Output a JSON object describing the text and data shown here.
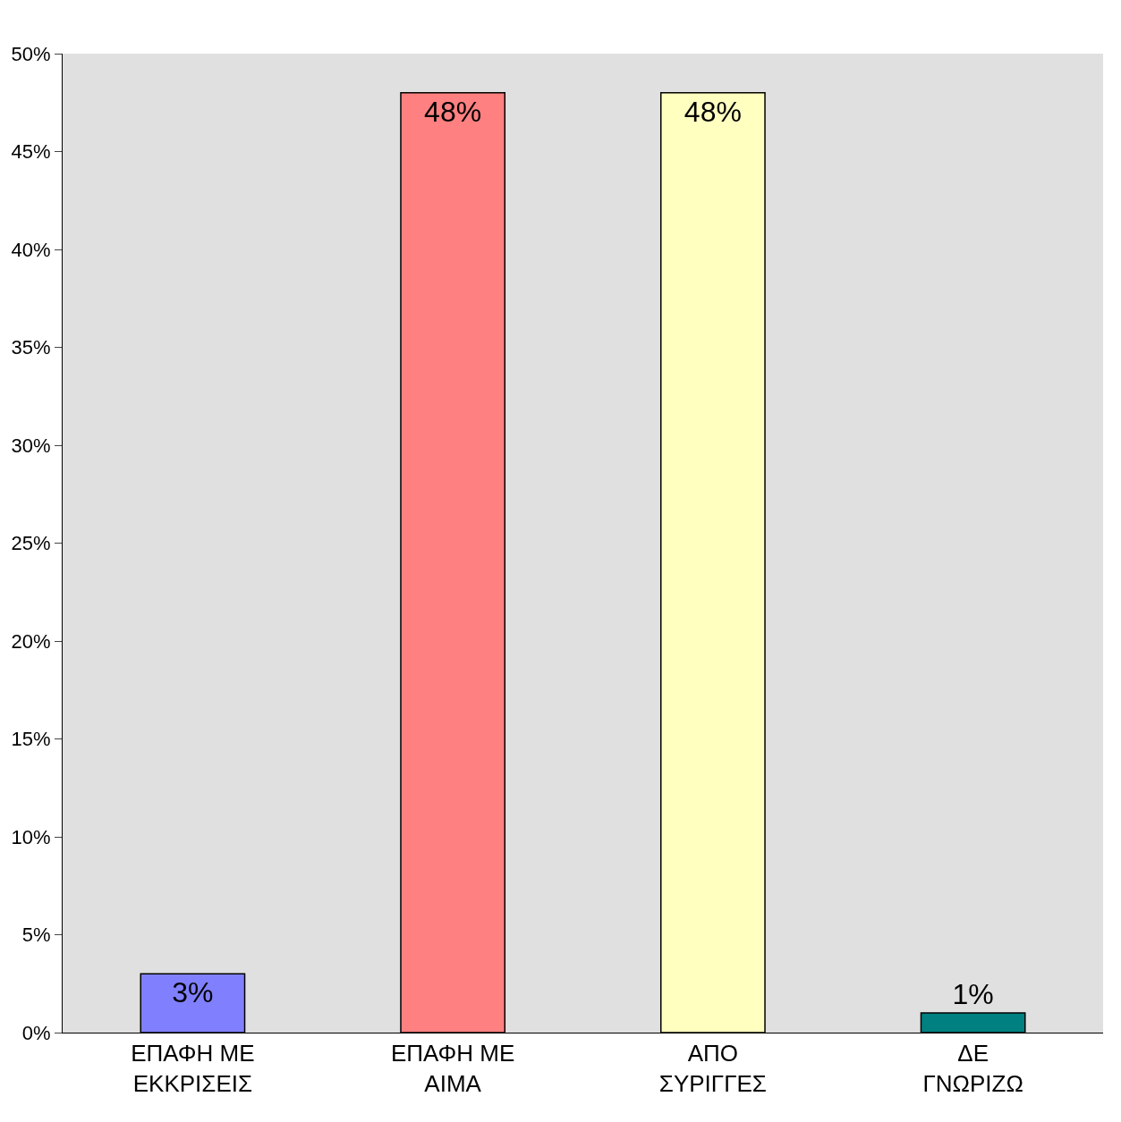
{
  "chart_data": {
    "type": "bar",
    "categories": [
      "ΕΠΑΦΗ ΜΕ ΕΚΚΡΙΣΕΙΣ",
      "ΕΠΑΦΗ ΜΕ ΑΙΜΑ",
      "ΑΠΟ ΣΥΡΙΓΓΕΣ",
      "ΔΕ ΓΝΩΡΙΖΩ"
    ],
    "values": [
      3,
      48,
      48,
      1
    ],
    "colors": [
      "#8080ff",
      "#ff8080",
      "#ffffc0",
      "#008080"
    ],
    "value_labels": [
      "3%",
      "48%",
      "48%",
      "1%"
    ],
    "ylim": [
      0,
      50
    ],
    "yticks": [
      {
        "value": 0,
        "label": "0%"
      },
      {
        "value": 5,
        "label": "5%"
      },
      {
        "value": 10,
        "label": "10%"
      },
      {
        "value": 15,
        "label": "15%"
      },
      {
        "value": 20,
        "label": "20%"
      },
      {
        "value": 25,
        "label": "25%"
      },
      {
        "value": 30,
        "label": "30%"
      },
      {
        "value": 35,
        "label": "35%"
      },
      {
        "value": 40,
        "label": "40%"
      },
      {
        "value": 45,
        "label": "45%"
      },
      {
        "value": 50,
        "label": "50%"
      }
    ],
    "grid": false,
    "legend": false
  }
}
